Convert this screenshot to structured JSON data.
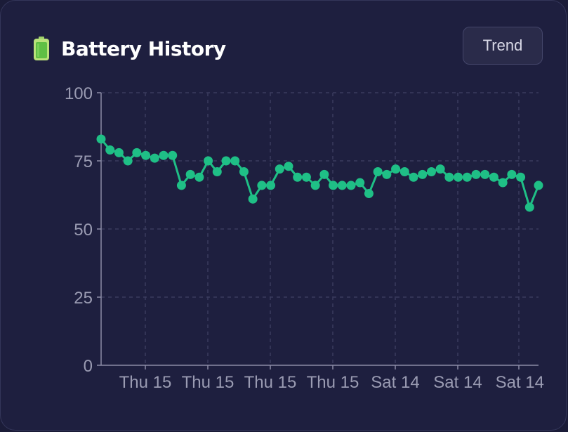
{
  "header": {
    "title": "Battery History",
    "icon": "battery-icon",
    "button_label": "Trend"
  },
  "colors": {
    "background": "#1e1f3f",
    "line": "#1fbf86",
    "grid": "#3a3c5e",
    "axis": "#8b8ca6",
    "battery_body": "#b9e27a",
    "battery_fill": "#5fbf44"
  },
  "chart_data": {
    "type": "line",
    "title": "",
    "xlabel": "",
    "ylabel": "",
    "ylim": [
      0,
      100
    ],
    "yticks": [
      0,
      25,
      50,
      75,
      100
    ],
    "xtick_labels": [
      "Thu 15",
      "Thu 15",
      "Thu 15",
      "Thu 15",
      "Sat 14",
      "Sat 14",
      "Sat 14"
    ],
    "grid": true,
    "legend": "none",
    "series": [
      {
        "values": [
          83,
          79,
          78,
          75,
          78,
          77,
          76,
          77,
          77,
          66,
          70,
          69,
          75,
          71,
          75,
          75,
          71,
          61,
          66,
          66,
          72,
          73,
          69,
          69,
          66,
          70,
          66,
          66,
          66,
          67,
          63,
          71,
          70,
          72,
          71,
          69,
          70,
          71,
          72,
          69,
          69,
          69,
          70,
          70,
          69,
          67,
          70,
          69,
          58,
          66
        ]
      }
    ]
  }
}
